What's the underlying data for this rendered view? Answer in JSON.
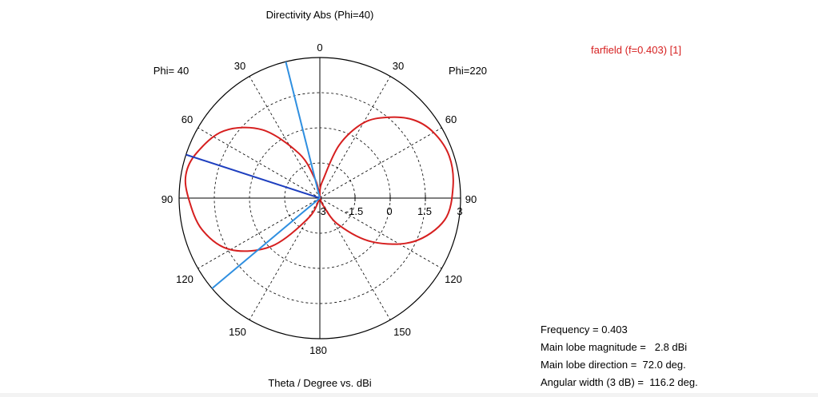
{
  "chart_data": {
    "type": "polar",
    "title": "Directivity Abs (Phi=40)",
    "xlabel": "Theta / Degree vs. dBi",
    "left_half_label": "Phi= 40",
    "right_half_label": "Phi=220",
    "radial_tick_labels": [
      "-3",
      "-1.5",
      "0",
      "1.5",
      "3"
    ],
    "radial_range": [
      -3,
      3
    ],
    "angle_tick_labels": {
      "top": "0",
      "left": [
        "30",
        "60",
        "90",
        "120",
        "150"
      ],
      "right": [
        "30",
        "60",
        "90",
        "120",
        "150"
      ],
      "bottom": "180"
    },
    "grid": true,
    "series": [
      {
        "name": "farfield (f=0.403) [1]",
        "color": "#d61f1f",
        "points": [
          {
            "theta": 2,
            "r": -2.6
          },
          {
            "theta": 10,
            "r": -2.2
          },
          {
            "theta": 20,
            "r": -0.6
          },
          {
            "theta": 30,
            "r": 0.7
          },
          {
            "theta": 40,
            "r": 1.5
          },
          {
            "theta": 50,
            "r": 2.2
          },
          {
            "theta": 60,
            "r": 2.6
          },
          {
            "theta": 72,
            "r": 2.8
          },
          {
            "theta": 85,
            "r": 2.7
          },
          {
            "theta": 100,
            "r": 2.4
          },
          {
            "theta": 115,
            "r": 1.4
          },
          {
            "theta": 130,
            "r": -0.1
          },
          {
            "theta": 145,
            "r": -1.6
          },
          {
            "theta": 155,
            "r": -2.6
          },
          {
            "theta": 160,
            "r": -2.95
          },
          {
            "theta": 200,
            "r": -2.95
          },
          {
            "theta": 210,
            "r": -2.0
          },
          {
            "theta": 225,
            "r": -0.1
          },
          {
            "theta": 240,
            "r": 1.4
          },
          {
            "theta": 255,
            "r": 2.2
          },
          {
            "theta": 270,
            "r": 2.6
          },
          {
            "theta": 280,
            "r": 2.8
          },
          {
            "theta": 290,
            "r": 2.6
          },
          {
            "theta": 305,
            "r": 2.0
          },
          {
            "theta": 320,
            "r": 0.8
          },
          {
            "theta": 335,
            "r": -0.9
          },
          {
            "theta": 345,
            "r": -2.1
          },
          {
            "theta": 352,
            "r": -2.7
          },
          {
            "theta": 357,
            "r": -2.95
          }
        ]
      }
    ],
    "markers": [
      {
        "kind": "main-lobe-direction",
        "theta": 72,
        "color": "#1e3fbf"
      },
      {
        "kind": "3db-beamwidth-edge",
        "theta": 14,
        "color": "#2f8fe0"
      },
      {
        "kind": "3db-beamwidth-edge",
        "theta": 130,
        "color": "#2f8fe0"
      }
    ]
  },
  "info": {
    "lines": [
      "Frequency = 0.403",
      "Main lobe magnitude =   2.8 dBi",
      "Main lobe direction =  72.0 deg.",
      "Angular width (3 dB) =  116.2 deg."
    ]
  }
}
